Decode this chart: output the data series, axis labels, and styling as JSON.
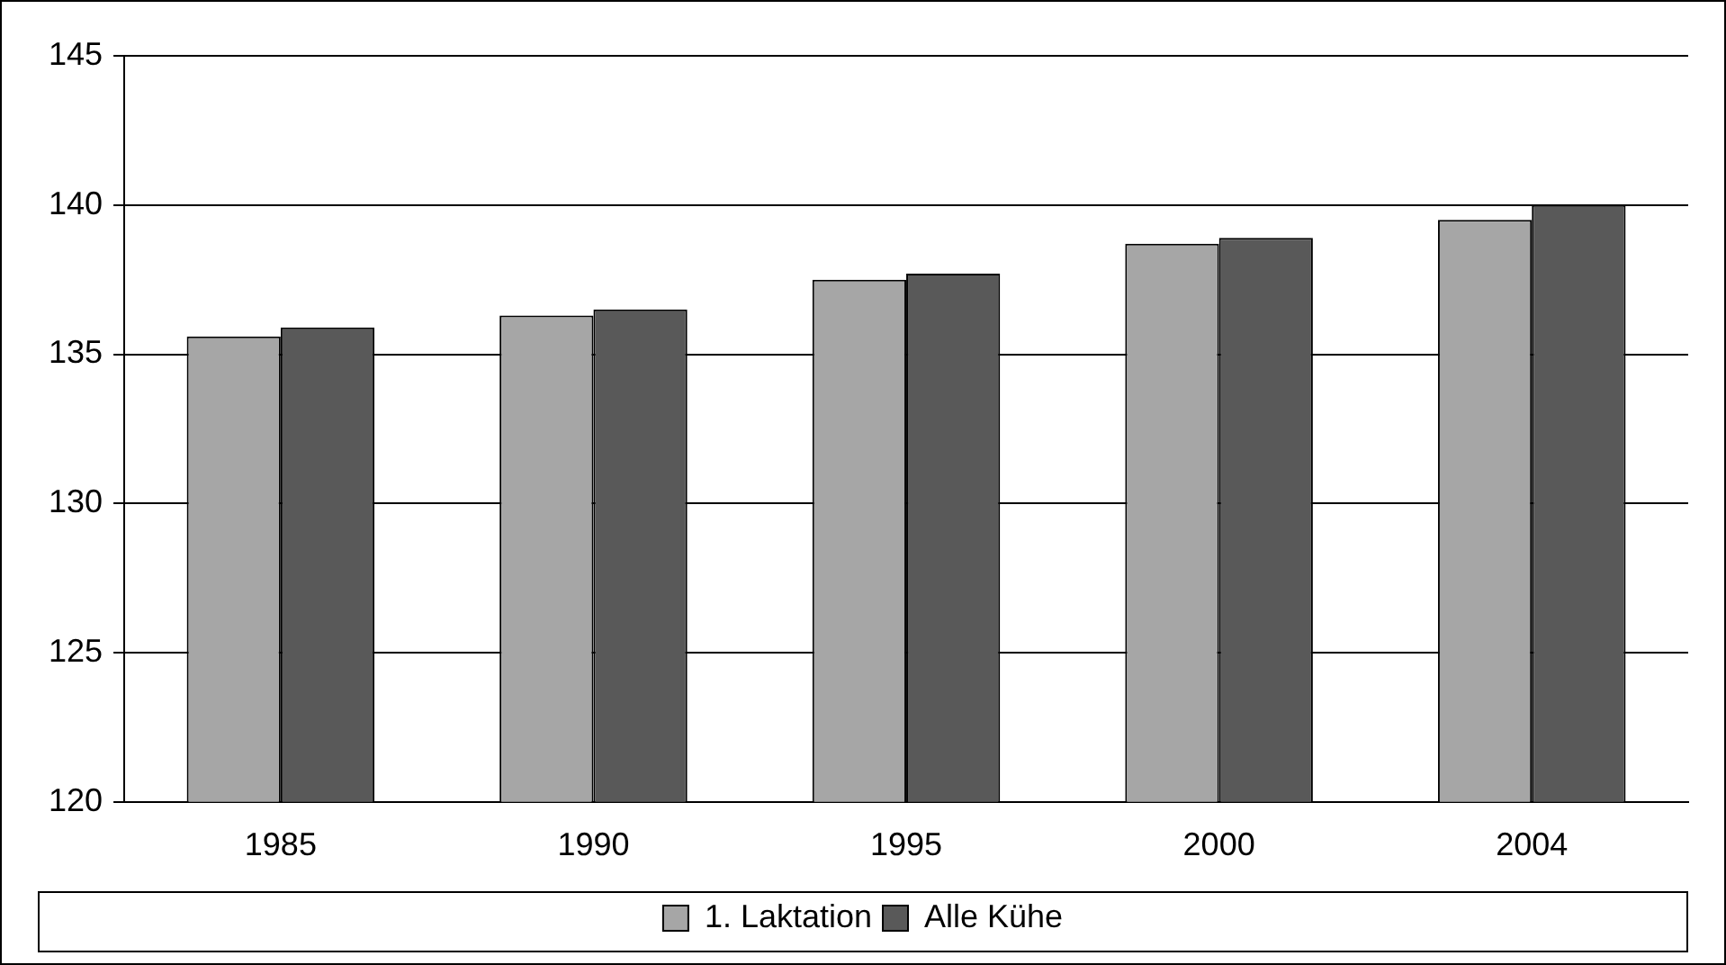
{
  "chart_data": {
    "type": "bar",
    "categories": [
      "1985",
      "1990",
      "1995",
      "2000",
      "2004"
    ],
    "series": [
      {
        "name": "1. Laktation",
        "color": "#a6a6a6",
        "values": [
          135.6,
          136.3,
          137.5,
          138.7,
          139.5
        ]
      },
      {
        "name": "Alle Kühe",
        "color": "#595959",
        "values": [
          135.9,
          136.5,
          137.7,
          138.9,
          140.0
        ]
      }
    ],
    "ylim": [
      120,
      145
    ],
    "yticks": [
      120,
      125,
      130,
      135,
      140,
      145
    ],
    "grid": "y",
    "legend": "bottom"
  }
}
